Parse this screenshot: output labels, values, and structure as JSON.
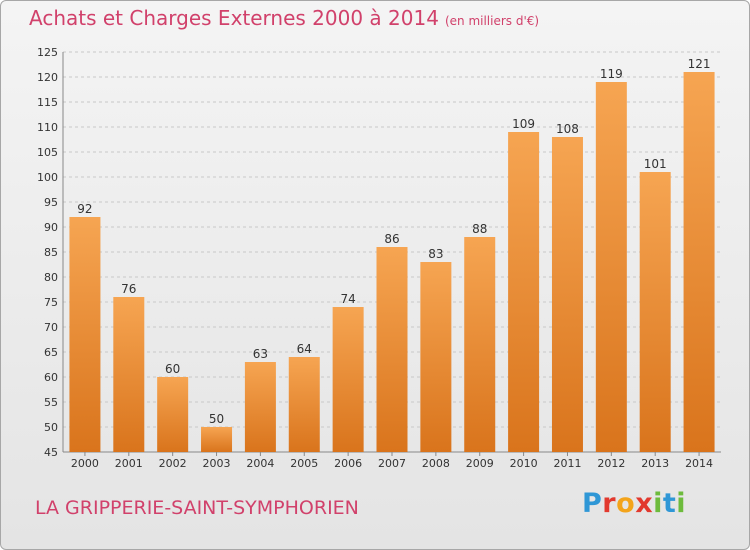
{
  "header": {
    "title": "Achats et Charges Externes 2000 à 2014",
    "unit": "(en milliers d'€)"
  },
  "footer": {
    "commune": "LA GRIPPERIE-SAINT-SYMPHORIEN",
    "logo": "Proxiti"
  },
  "colors": {
    "accent": "#d1416b",
    "bar_top": "#f6a552",
    "bar_bottom": "#d9741c",
    "grid": "#c8c8c8"
  },
  "chart_data": {
    "type": "bar",
    "title": "Achats et Charges Externes 2000 à 2014",
    "subtitle": "(en milliers d'€)",
    "xlabel": "",
    "ylabel": "",
    "categories": [
      "2000",
      "2001",
      "2002",
      "2003",
      "2004",
      "2005",
      "2006",
      "2007",
      "2008",
      "2009",
      "2010",
      "2011",
      "2012",
      "2013",
      "2014"
    ],
    "values": [
      92,
      76,
      60,
      50,
      63,
      64,
      74,
      86,
      83,
      88,
      109,
      108,
      119,
      101,
      121
    ],
    "ylim": [
      45,
      125
    ],
    "yticks": [
      45,
      50,
      55,
      60,
      65,
      70,
      75,
      80,
      85,
      90,
      95,
      100,
      105,
      110,
      115,
      120,
      125
    ],
    "grid": true,
    "legend": "none"
  }
}
